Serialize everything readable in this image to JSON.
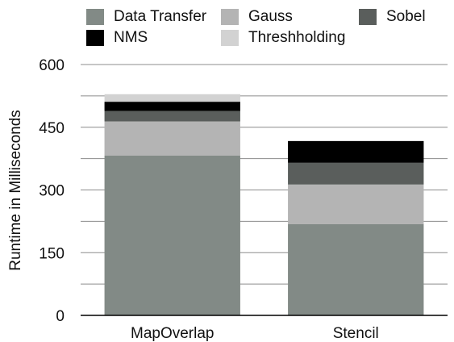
{
  "chart_data": {
    "type": "bar",
    "stacked": true,
    "categories": [
      "MapOverlap",
      "Stencil"
    ],
    "ylabel": "Runtime in Milliseconds",
    "xlabel": "",
    "ylim": [
      0,
      600
    ],
    "yticks": [
      "0",
      "150",
      "300",
      "450",
      "600"
    ],
    "grid": true,
    "legend_position": "top",
    "series": [
      {
        "name": "Data Transfer",
        "color": "#828a86",
        "values": [
          382,
          218
        ]
      },
      {
        "name": "Gauss",
        "color": "#b4b4b4",
        "values": [
          82,
          95
        ]
      },
      {
        "name": "Sobel",
        "color": "#5a5e5c",
        "values": [
          25,
          52
        ]
      },
      {
        "name": "NMS",
        "color": "#000000",
        "values": [
          22,
          52
        ]
      },
      {
        "name": "Threshholding",
        "color": "#d2d2d2",
        "values": [
          18,
          0
        ]
      }
    ]
  }
}
